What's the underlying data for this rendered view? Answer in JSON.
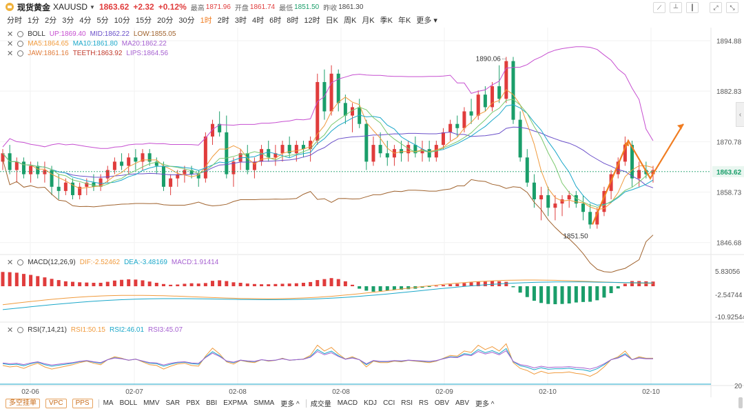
{
  "header": {
    "title": "现货黄金",
    "symbol": "XAUUSD",
    "price": "1863.62",
    "change": "+2.32",
    "change_pct": "+0.12%",
    "high_label": "最高",
    "high": "1871.96",
    "open_label": "开盘",
    "open": "1861.74",
    "low_label": "最低",
    "low": "1851.50",
    "prev_label": "昨收",
    "prev": "1861.30"
  },
  "timeframes": [
    "分时",
    "1分",
    "2分",
    "3分",
    "4分",
    "5分",
    "10分",
    "15分",
    "20分",
    "30分",
    "1时",
    "2时",
    "3时",
    "4时",
    "6时",
    "8时",
    "12时",
    "日K",
    "周K",
    "月K",
    "季K",
    "年K",
    "更多"
  ],
  "active_timeframe": "1时",
  "legends": {
    "boll": {
      "name": "BOLL",
      "up": "UP:1869.40",
      "mid": "MID:1862.22",
      "low": "LOW:1855.05"
    },
    "ma": {
      "ma5": "MA5:1864.65",
      "ma10": "MA10:1861.80",
      "ma20": "MA20:1862.22"
    },
    "alligator": {
      "jaw": "JAW:1861.16",
      "teeth": "TEETH:1863.92",
      "lips": "LIPS:1864.56"
    },
    "macd": {
      "name": "MACD(12,26,9)",
      "dif": "DIF:-2.52462",
      "dea": "DEA:-3.48169",
      "macd": "MACD:1.91414"
    },
    "rsi": {
      "name": "RSI(7,14,21)",
      "rsi1": "RSI1:50.15",
      "rsi2": "RSI2:46.01",
      "rsi3": "RSI3:45.07"
    }
  },
  "price_axis": [
    "1894.88",
    "1882.83",
    "1870.78",
    "1858.73",
    "1846.68"
  ],
  "current_price_label": "1863.62",
  "annotations": {
    "high_mark": "1890.06",
    "low_mark": "1851.50"
  },
  "macd_axis": [
    "5.83056",
    "-2.54744",
    "-10.92544"
  ],
  "rsi_axis": [
    "20"
  ],
  "date_axis": [
    "02-06",
    "02-07",
    "02-08",
    "02-08",
    "02-09",
    "02-10",
    "02-10"
  ],
  "bottom": {
    "tags": [
      "多空挂单",
      "VPC",
      "PPS"
    ],
    "main_indicators": [
      "MA",
      "BOLL",
      "MMV",
      "SAR",
      "PBX",
      "BBI",
      "EXPMA",
      "SMMA",
      "更多"
    ],
    "sub_indicators": [
      "成交量",
      "MACD",
      "KDJ",
      "CCI",
      "RSI",
      "RS",
      "OBV",
      "ABV",
      "更多"
    ]
  },
  "colors": {
    "up": "#e03c3c",
    "down": "#1a9e6a",
    "accent": "#f07d22",
    "boll_up": "#c64ed0",
    "boll_mid": "#6a4fc9",
    "boll_low": "#a0632e",
    "ma5": "#f09a3c",
    "ma10": "#1aa7c9",
    "ma20": "#a55fd0"
  },
  "chart_data": {
    "type": "candlestick",
    "ylim": [
      1844,
      1898
    ],
    "candles": [
      [
        1866,
        1869,
        1864,
        1868
      ],
      [
        1868,
        1870,
        1863,
        1864
      ],
      [
        1864,
        1867,
        1861,
        1866
      ],
      [
        1866,
        1867,
        1862,
        1863
      ],
      [
        1863,
        1866,
        1861,
        1865
      ],
      [
        1865,
        1866,
        1862,
        1863
      ],
      [
        1863,
        1866,
        1861,
        1864
      ],
      [
        1864,
        1865,
        1858,
        1860
      ],
      [
        1860,
        1863,
        1857,
        1859
      ],
      [
        1859,
        1862,
        1858,
        1861
      ],
      [
        1861,
        1862,
        1857,
        1858
      ],
      [
        1858,
        1861,
        1857,
        1860
      ],
      [
        1860,
        1862,
        1858,
        1861
      ],
      [
        1861,
        1863,
        1859,
        1860
      ],
      [
        1860,
        1863,
        1859,
        1862
      ],
      [
        1862,
        1865,
        1861,
        1864
      ],
      [
        1864,
        1867,
        1863,
        1866
      ],
      [
        1866,
        1868,
        1864,
        1865
      ],
      [
        1865,
        1868,
        1863,
        1867
      ],
      [
        1867,
        1869,
        1864,
        1866
      ],
      [
        1866,
        1869,
        1864,
        1868
      ],
      [
        1868,
        1869,
        1865,
        1866
      ],
      [
        1866,
        1867,
        1863,
        1865
      ],
      [
        1865,
        1866,
        1859,
        1860
      ],
      [
        1860,
        1863,
        1858,
        1862
      ],
      [
        1862,
        1864,
        1860,
        1863
      ],
      [
        1863,
        1865,
        1861,
        1864
      ],
      [
        1864,
        1865,
        1862,
        1863
      ],
      [
        1863,
        1864,
        1860,
        1862
      ],
      [
        1862,
        1873,
        1861,
        1872
      ],
      [
        1872,
        1876,
        1870,
        1875
      ],
      [
        1875,
        1878,
        1872,
        1873
      ],
      [
        1873,
        1877,
        1862,
        1863
      ],
      [
        1863,
        1867,
        1860,
        1866
      ],
      [
        1866,
        1869,
        1864,
        1868
      ],
      [
        1868,
        1870,
        1863,
        1864
      ],
      [
        1864,
        1867,
        1862,
        1866
      ],
      [
        1866,
        1870,
        1865,
        1869
      ],
      [
        1869,
        1871,
        1866,
        1867
      ],
      [
        1867,
        1870,
        1865,
        1868
      ],
      [
        1868,
        1871,
        1866,
        1870
      ],
      [
        1870,
        1872,
        1867,
        1868
      ],
      [
        1868,
        1871,
        1866,
        1870
      ],
      [
        1870,
        1871,
        1867,
        1869
      ],
      [
        1869,
        1872,
        1866,
        1871
      ],
      [
        1871,
        1887,
        1870,
        1885
      ],
      [
        1885,
        1888,
        1876,
        1878
      ],
      [
        1878,
        1889,
        1877,
        1887
      ],
      [
        1887,
        1888,
        1878,
        1880
      ],
      [
        1880,
        1882,
        1875,
        1877
      ],
      [
        1877,
        1880,
        1873,
        1879
      ],
      [
        1879,
        1881,
        1874,
        1875
      ],
      [
        1875,
        1876,
        1864,
        1866
      ],
      [
        1866,
        1872,
        1865,
        1870
      ],
      [
        1870,
        1873,
        1867,
        1868
      ],
      [
        1868,
        1871,
        1865,
        1867
      ],
      [
        1867,
        1870,
        1865,
        1869
      ],
      [
        1869,
        1871,
        1866,
        1868
      ],
      [
        1868,
        1871,
        1866,
        1870
      ],
      [
        1870,
        1872,
        1867,
        1868
      ],
      [
        1868,
        1871,
        1866,
        1869
      ],
      [
        1869,
        1871,
        1866,
        1867
      ],
      [
        1867,
        1871,
        1866,
        1870
      ],
      [
        1870,
        1874,
        1869,
        1873
      ],
      [
        1873,
        1876,
        1871,
        1875
      ],
      [
        1875,
        1877,
        1872,
        1874
      ],
      [
        1874,
        1879,
        1873,
        1878
      ],
      [
        1878,
        1881,
        1875,
        1877
      ],
      [
        1877,
        1883,
        1876,
        1882
      ],
      [
        1882,
        1884,
        1878,
        1879
      ],
      [
        1879,
        1885,
        1878,
        1884
      ],
      [
        1884,
        1889,
        1880,
        1881
      ],
      [
        1881,
        1891,
        1880,
        1890
      ],
      [
        1890,
        1891,
        1875,
        1876
      ],
      [
        1876,
        1878,
        1866,
        1867
      ],
      [
        1867,
        1869,
        1860,
        1861
      ],
      [
        1861,
        1863,
        1855,
        1857
      ],
      [
        1857,
        1860,
        1852,
        1858
      ],
      [
        1858,
        1860,
        1853,
        1855
      ],
      [
        1855,
        1858,
        1852,
        1856
      ],
      [
        1856,
        1858,
        1853,
        1857
      ],
      [
        1857,
        1859,
        1855,
        1858
      ],
      [
        1858,
        1859,
        1855,
        1856
      ],
      [
        1856,
        1858,
        1852,
        1854
      ],
      [
        1854,
        1856,
        1850,
        1851
      ],
      [
        1851,
        1855,
        1850,
        1854
      ],
      [
        1854,
        1860,
        1853,
        1859
      ],
      [
        1859,
        1864,
        1857,
        1863
      ],
      [
        1863,
        1867,
        1862,
        1866
      ],
      [
        1866,
        1872,
        1865,
        1870
      ],
      [
        1870,
        1871,
        1860,
        1862
      ],
      [
        1862,
        1866,
        1860,
        1864
      ],
      [
        1864,
        1866,
        1862,
        1863
      ],
      [
        1863,
        1865,
        1861,
        1864
      ]
    ]
  }
}
